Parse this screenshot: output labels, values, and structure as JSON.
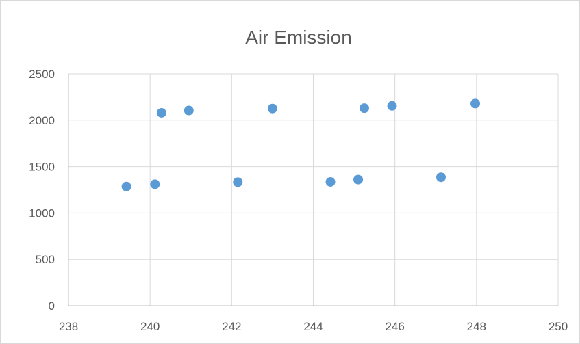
{
  "chart_data": {
    "type": "scatter",
    "title": "Air Emission",
    "xlabel": "",
    "ylabel": "",
    "xlim": [
      238,
      250
    ],
    "ylim": [
      0,
      2500
    ],
    "xticks": [
      238,
      240,
      242,
      244,
      246,
      248,
      250
    ],
    "yticks": [
      0,
      500,
      1000,
      1500,
      2000,
      2500
    ],
    "grid": true,
    "legend": "none",
    "marker_color": "#5b9bd5",
    "series": [
      {
        "points": [
          {
            "x": 239.42,
            "y": 1285
          },
          {
            "x": 240.12,
            "y": 1310
          },
          {
            "x": 240.28,
            "y": 2080
          },
          {
            "x": 240.95,
            "y": 2105
          },
          {
            "x": 242.15,
            "y": 1332
          },
          {
            "x": 243.0,
            "y": 2126
          },
          {
            "x": 244.42,
            "y": 1335
          },
          {
            "x": 245.1,
            "y": 1360
          },
          {
            "x": 245.25,
            "y": 2130
          },
          {
            "x": 245.93,
            "y": 2155
          },
          {
            "x": 247.13,
            "y": 1385
          },
          {
            "x": 247.97,
            "y": 2180
          }
        ]
      }
    ]
  }
}
